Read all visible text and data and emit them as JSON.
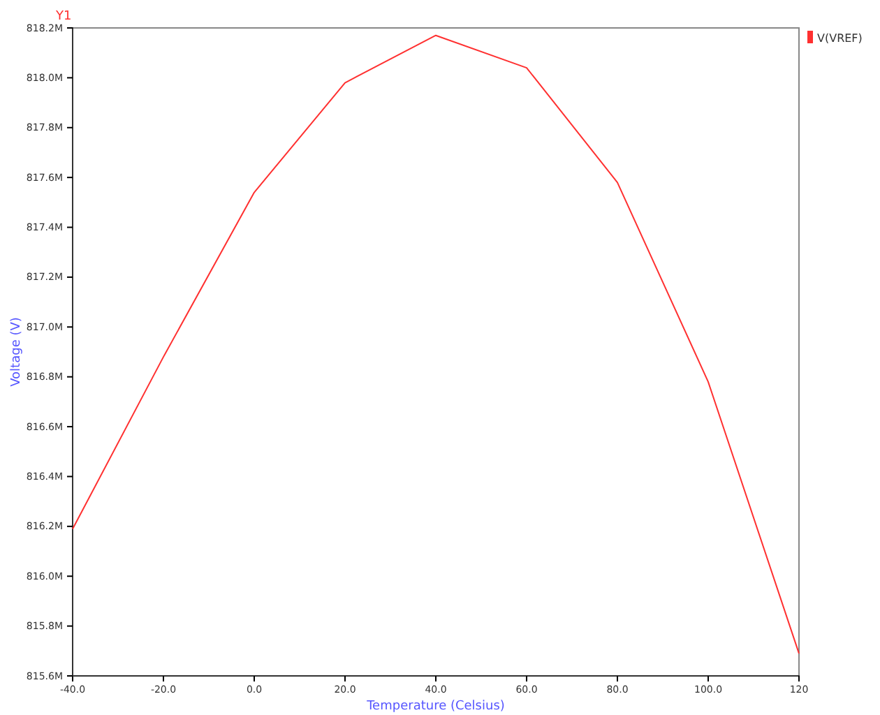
{
  "chart_data": {
    "type": "line",
    "xlabel": "Temperature (Celsius)",
    "ylabel": "Voltage (V)",
    "annotations": [
      "Y1"
    ],
    "x": [
      -40,
      -20,
      0,
      20,
      40,
      60,
      80,
      100,
      120
    ],
    "series": [
      {
        "name": "V(VREF)",
        "color": "#ff3030",
        "values": [
          816.19,
          816.88,
          817.54,
          817.98,
          818.17,
          818.04,
          817.58,
          816.78,
          815.69
        ]
      }
    ],
    "xlim": [
      -40,
      120
    ],
    "xticks": [
      {
        "value": -40,
        "label": "-40.0"
      },
      {
        "value": -20,
        "label": "-20.0"
      },
      {
        "value": 0,
        "label": "0.0"
      },
      {
        "value": 20,
        "label": "20.0"
      },
      {
        "value": 40,
        "label": "40.0"
      },
      {
        "value": 60,
        "label": "60.0"
      },
      {
        "value": 80,
        "label": "80.0"
      },
      {
        "value": 100,
        "label": "100.0"
      },
      {
        "value": 120,
        "label": "120"
      }
    ],
    "ylim": [
      815.6,
      818.2
    ],
    "yticks": [
      {
        "value": 815.6,
        "label": "815.6M"
      },
      {
        "value": 815.8,
        "label": "815.8M"
      },
      {
        "value": 816.0,
        "label": "816.0M"
      },
      {
        "value": 816.2,
        "label": "816.2M"
      },
      {
        "value": 816.4,
        "label": "816.4M"
      },
      {
        "value": 816.6,
        "label": "816.6M"
      },
      {
        "value": 816.8,
        "label": "816.8M"
      },
      {
        "value": 817.0,
        "label": "817.0M"
      },
      {
        "value": 817.2,
        "label": "817.2M"
      },
      {
        "value": 817.4,
        "label": "817.4M"
      },
      {
        "value": 817.6,
        "label": "817.6M"
      },
      {
        "value": 817.8,
        "label": "817.8M"
      },
      {
        "value": 818.0,
        "label": "818.0M"
      },
      {
        "value": 818.2,
        "label": "818.2M"
      }
    ],
    "grid": false,
    "legend": "top right",
    "marker": "none",
    "line_style": "solid"
  }
}
